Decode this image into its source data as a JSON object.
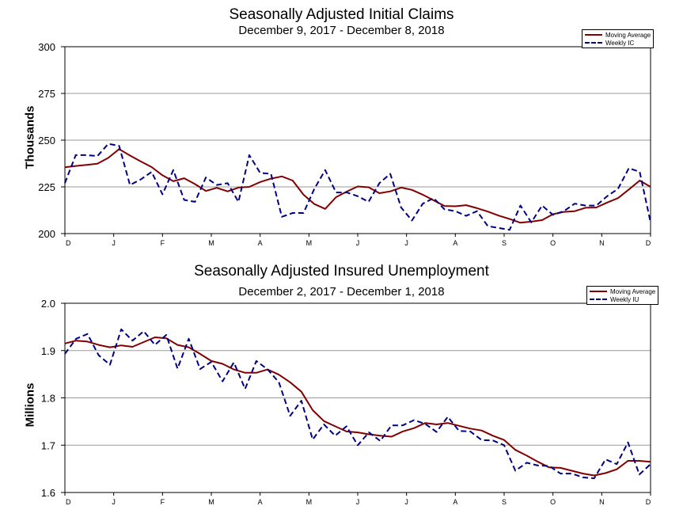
{
  "chart_data": [
    {
      "type": "line",
      "title": "Seasonally Adjusted Initial Claims",
      "subtitle": "December 9, 2017 - December 8, 2018",
      "ylabel": "Thousands",
      "ylim": [
        200,
        300
      ],
      "yticks": [
        "200",
        "225",
        "250",
        "275",
        "300"
      ],
      "xticks": [
        "D",
        "J",
        "F",
        "M",
        "A",
        "M",
        "J",
        "J",
        "A",
        "S",
        "O",
        "N",
        "D"
      ],
      "legend_position": "top-right",
      "grid": true,
      "series": [
        {
          "name": "Moving Average",
          "color": "#800000",
          "style": "solid",
          "values": [
            235.5,
            236.2,
            236.8,
            237.4,
            240.5,
            245.2,
            241.8,
            238.6,
            235.6,
            231.2,
            228.0,
            229.6,
            226.5,
            222.8,
            224.5,
            222.6,
            224.6,
            225.0,
            227.6,
            229.4,
            230.6,
            228.4,
            220.8,
            215.8,
            213.2,
            219.5,
            222.5,
            225.2,
            224.8,
            221.6,
            222.6,
            224.6,
            223.4,
            220.8,
            217.8,
            214.8,
            214.6,
            215.2,
            213.6,
            211.8,
            209.6,
            207.8,
            205.8,
            206.4,
            207.2,
            210.4,
            211.6,
            212.0,
            213.8,
            214.0,
            216.6,
            219.0,
            223.6,
            228.4,
            225.0
          ]
        },
        {
          "name": "Weekly IC",
          "color": "#000080",
          "style": "dashed",
          "values": [
            227.0,
            242.0,
            242.0,
            241.5,
            248.0,
            247.0,
            226.0,
            229.0,
            233.0,
            221.0,
            234.0,
            218.0,
            217.0,
            230.0,
            226.0,
            227.0,
            217.0,
            242.0,
            232.5,
            232.0,
            209.0,
            211.0,
            211.0,
            224.0,
            234.0,
            222.0,
            222.0,
            220.0,
            217.0,
            227.0,
            232.0,
            214.0,
            207.0,
            216.0,
            219.0,
            213.0,
            212.0,
            209.5,
            212.0,
            204.0,
            203.0,
            202.0,
            215.0,
            206.0,
            215.0,
            210.0,
            212.0,
            216.0,
            215.0,
            215.0,
            220.0,
            224.0,
            235.0,
            233.0,
            206.0
          ]
        }
      ]
    },
    {
      "type": "line",
      "title": "Seasonally Adjusted Insured Unemployment",
      "subtitle": "December 2, 2017 - December 1, 2018",
      "ylabel": "Millions",
      "ylim": [
        1.6,
        2.0
      ],
      "yticks": [
        "1.6",
        "1.7",
        "1.8",
        "1.9",
        "2.0"
      ],
      "xticks": [
        "D",
        "J",
        "F",
        "M",
        "A",
        "M",
        "J",
        "J",
        "A",
        "S",
        "O",
        "N",
        "D"
      ],
      "legend_position": "top-right",
      "grid": true,
      "series": [
        {
          "name": "Moving Average",
          "color": "#800000",
          "style": "solid",
          "values": [
            1.915,
            1.921,
            1.919,
            1.912,
            1.907,
            1.911,
            1.908,
            1.918,
            1.928,
            1.926,
            1.912,
            1.907,
            1.893,
            1.878,
            1.872,
            1.86,
            1.853,
            1.853,
            1.86,
            1.849,
            1.833,
            1.813,
            1.774,
            1.751,
            1.74,
            1.729,
            1.727,
            1.723,
            1.72,
            1.718,
            1.729,
            1.736,
            1.747,
            1.744,
            1.747,
            1.741,
            1.735,
            1.731,
            1.72,
            1.711,
            1.69,
            1.678,
            1.665,
            1.653,
            1.652,
            1.646,
            1.64,
            1.636,
            1.641,
            1.649,
            1.667,
            1.667,
            1.665
          ]
        },
        {
          "name": "Weekly IU",
          "color": "#000080",
          "style": "dashed",
          "values": [
            1.893,
            1.925,
            1.935,
            1.89,
            1.87,
            1.945,
            1.921,
            1.941,
            1.912,
            1.933,
            1.862,
            1.925,
            1.861,
            1.876,
            1.835,
            1.875,
            1.819,
            1.878,
            1.86,
            1.833,
            1.762,
            1.794,
            1.712,
            1.744,
            1.72,
            1.74,
            1.7,
            1.727,
            1.709,
            1.742,
            1.742,
            1.753,
            1.745,
            1.728,
            1.76,
            1.73,
            1.729,
            1.711,
            1.71,
            1.7,
            1.646,
            1.663,
            1.657,
            1.656,
            1.64,
            1.64,
            1.632,
            1.63,
            1.67,
            1.66,
            1.706,
            1.638,
            1.66
          ]
        }
      ]
    }
  ]
}
